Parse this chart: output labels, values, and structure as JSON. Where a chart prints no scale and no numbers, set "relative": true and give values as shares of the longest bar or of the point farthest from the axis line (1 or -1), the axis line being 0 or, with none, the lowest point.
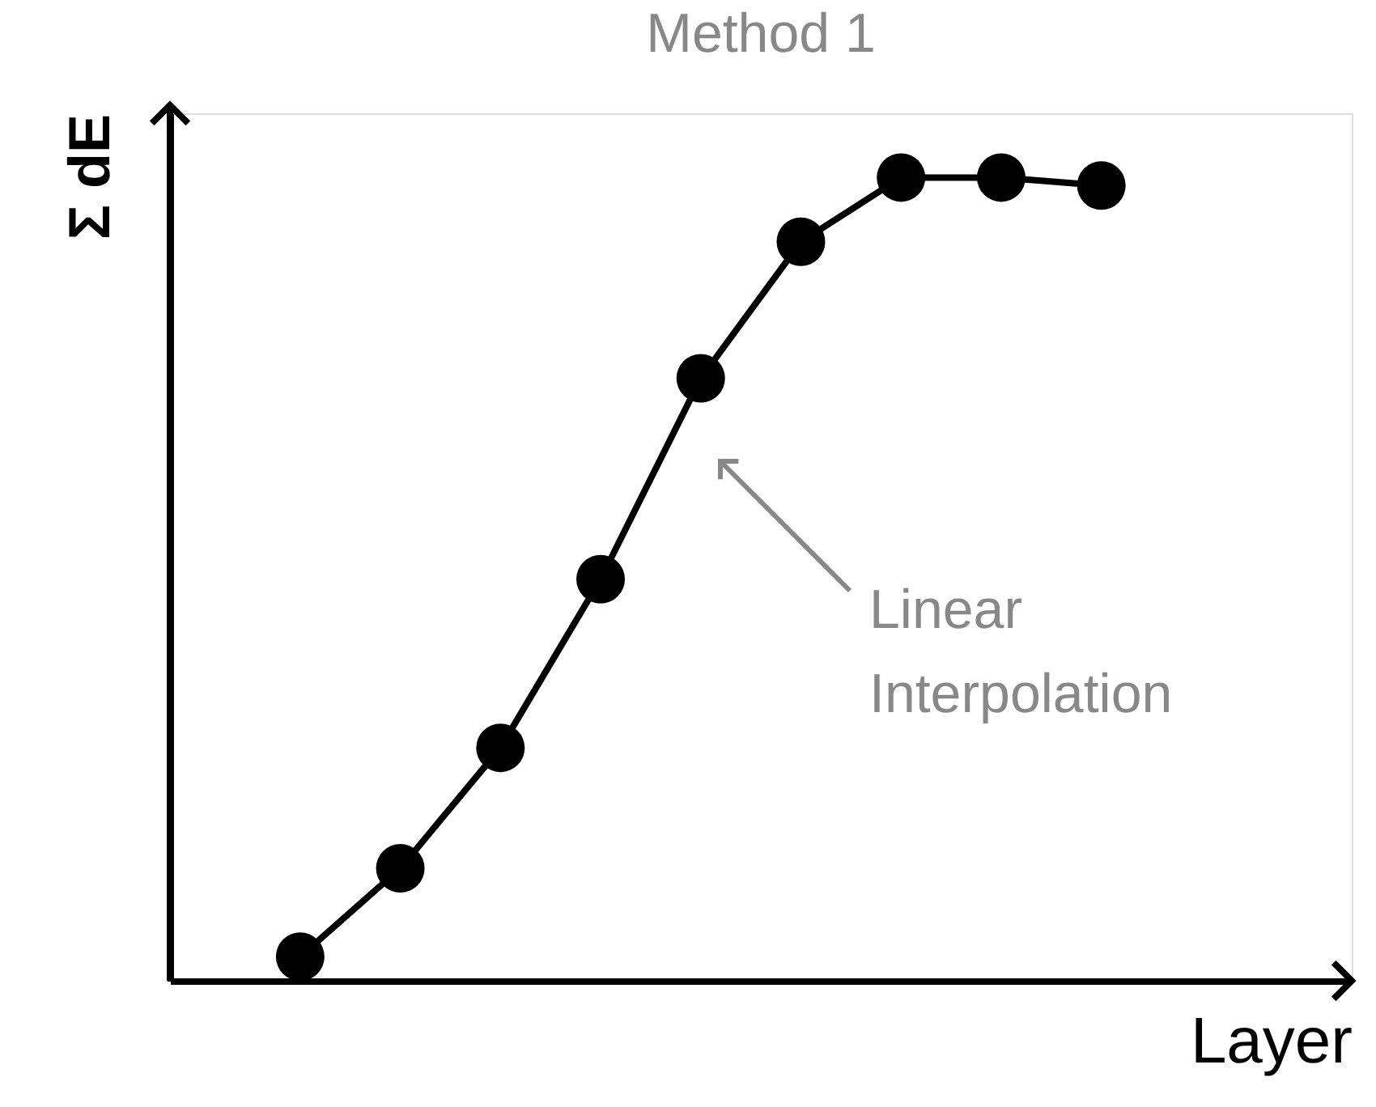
{
  "chart_data": {
    "type": "line",
    "title": "Method 1",
    "xlabel": "Layer",
    "ylabel": "Σ dE",
    "categories": [
      null,
      null,
      null,
      null,
      null,
      null,
      null,
      null,
      null
    ],
    "series": [
      {
        "color": "#000000",
        "values": [
          0.03,
          0.14,
          0.29,
          0.5,
          0.75,
          0.92,
          1.0,
          1.0,
          0.99
        ]
      }
    ],
    "relative": true,
    "marker": "circle",
    "line_style": "solid",
    "grid": false,
    "annotations": [
      "Linear Interpolation"
    ]
  }
}
